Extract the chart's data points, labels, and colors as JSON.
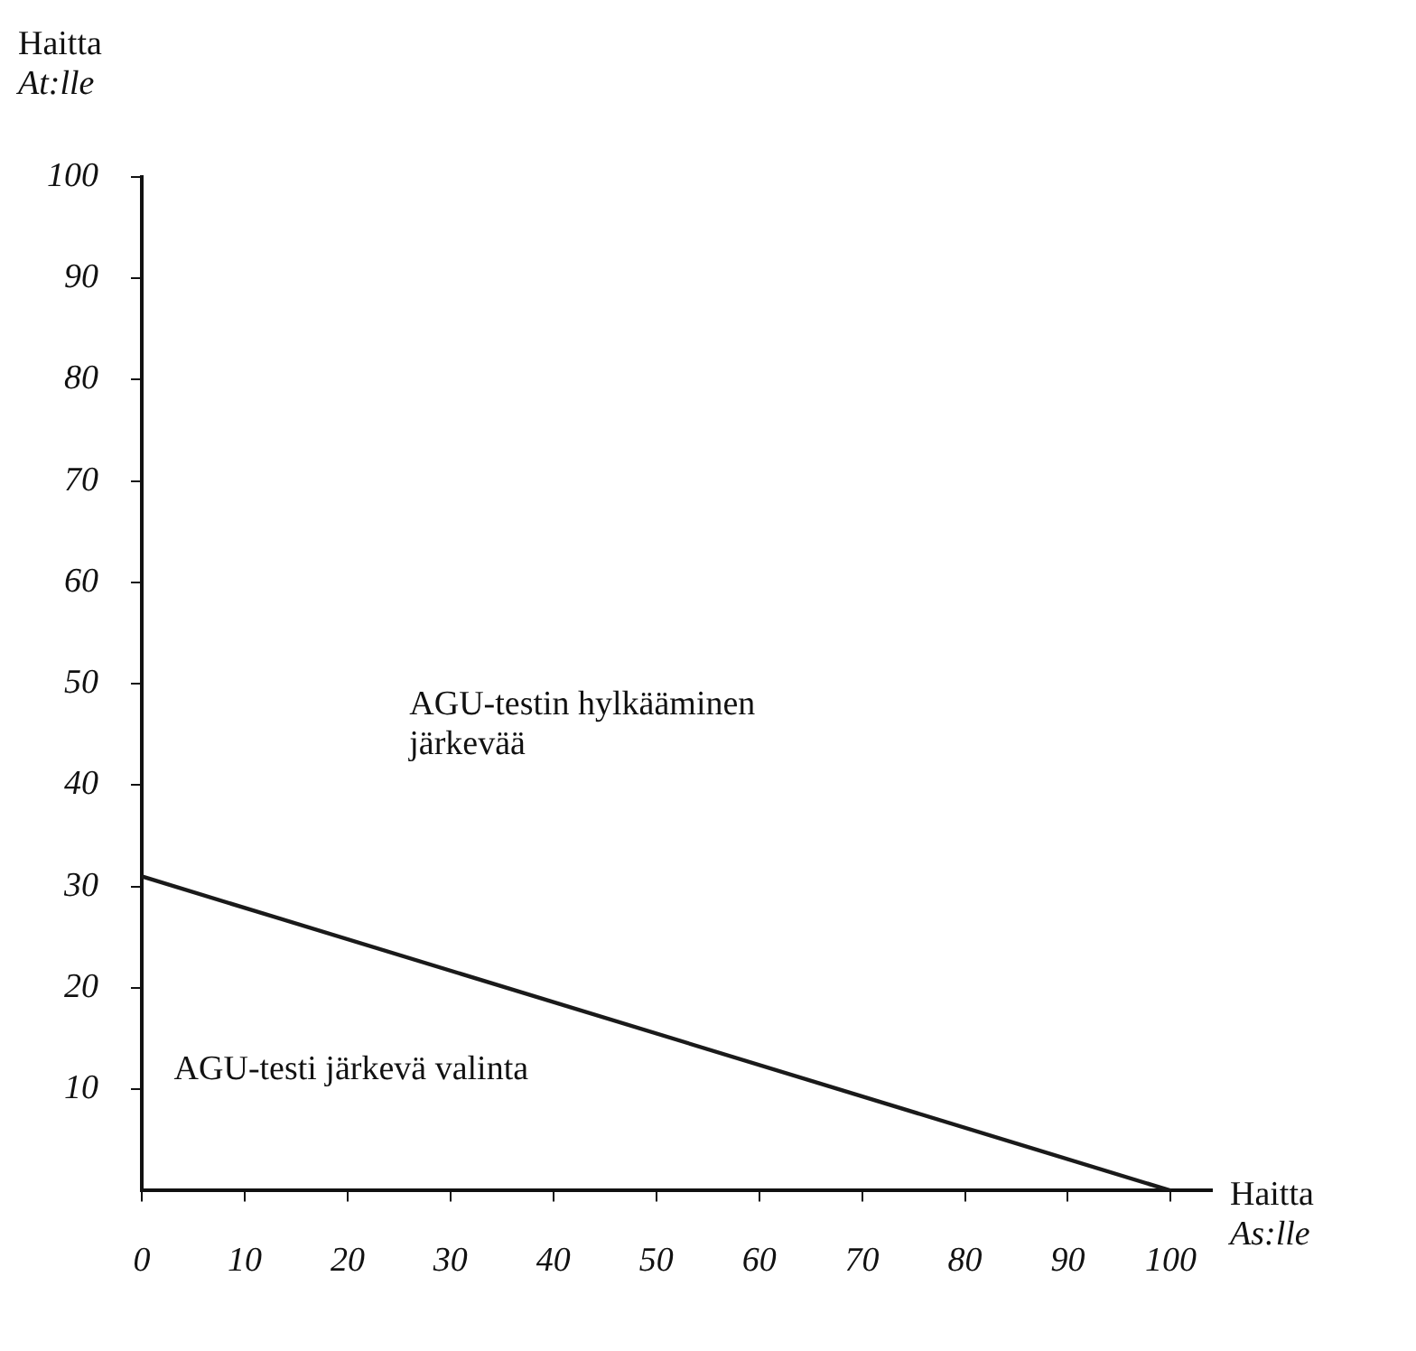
{
  "chart_data": {
    "type": "line",
    "xlabel": "Haitta\nAs:lle",
    "ylabel": "Haitta\nAt:lle",
    "series": [
      {
        "color": "#1a1a1a",
        "x": [
          0,
          100
        ],
        "values": [
          31,
          0
        ]
      }
    ],
    "xlim": [
      0,
      104
    ],
    "xticks": [
      0,
      10,
      20,
      30,
      40,
      50,
      60,
      70,
      80,
      90,
      100
    ],
    "ylim": [
      0,
      100
    ],
    "yticks": [
      10,
      20,
      30,
      40,
      50,
      60,
      70,
      80,
      90,
      100
    ],
    "annotations": [
      "AGU-testin hylkääminen\njärkevää",
      "AGU-testi järkevä valinta"
    ],
    "grid": false,
    "legend": false,
    "marker": "none",
    "line_style": "solid"
  }
}
